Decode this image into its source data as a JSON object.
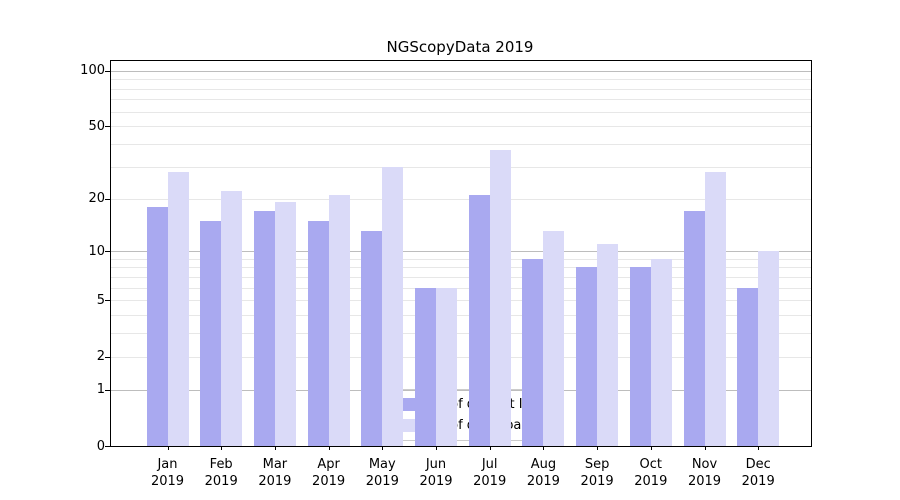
{
  "chart_data": {
    "type": "bar",
    "title": "NGScopyData 2019",
    "scale": "log1p",
    "ylim": [
      0,
      100
    ],
    "yticks": [
      0,
      1,
      2,
      5,
      10,
      20,
      50,
      100
    ],
    "grid": "both",
    "legend_position": "bottom-center",
    "categories": [
      "Jan",
      "Feb",
      "Mar",
      "Apr",
      "May",
      "Jun",
      "Jul",
      "Aug",
      "Sep",
      "Oct",
      "Nov",
      "Dec"
    ],
    "year_label": "2019",
    "series": [
      {
        "name": "Nb of distinct IPs",
        "color": "#a9a9f0",
        "values": [
          18,
          15,
          17,
          15,
          13,
          6,
          21,
          9,
          8,
          8,
          17,
          6
        ]
      },
      {
        "name": "Nb of downloads",
        "color": "#dadaf8",
        "values": [
          28,
          22,
          19,
          21,
          30,
          6,
          37,
          13,
          11,
          9,
          28,
          10
        ]
      }
    ]
  }
}
